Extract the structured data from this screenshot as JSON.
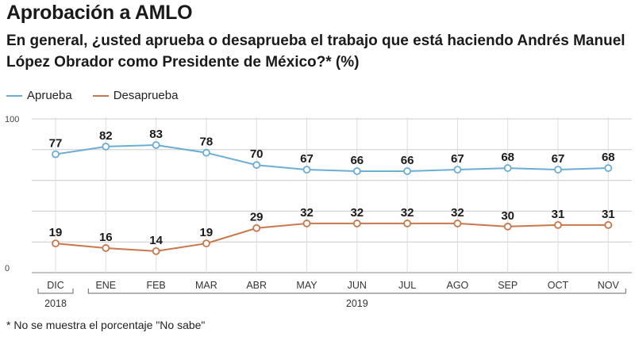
{
  "title": "Aprobación a AMLO",
  "subtitle": "En general, ¿usted aprueba o desaprueba el trabajo que está haciendo Andrés Manuel López Obrador como Presidente de México?*  (%)",
  "footnote": "* No se muestra el porcentaje \"No sabe\"",
  "colors": {
    "aprueba": "#6aaed6",
    "desaprueba": "#c8784a",
    "grid": "#cccccc",
    "axis": "#888888"
  },
  "chart_data": {
    "type": "line",
    "title": "Aprobación a AMLO",
    "xlabel": "",
    "ylabel": "%",
    "ylim": [
      0,
      100
    ],
    "y_tick_labels": [
      "100",
      "0"
    ],
    "categories": [
      "DIC",
      "ENE",
      "FEB",
      "MAR",
      "ABR",
      "MAY",
      "JUN",
      "JUL",
      "AGO",
      "SEP",
      "OCT",
      "NOV"
    ],
    "year_groups": [
      {
        "label": "2018",
        "start": 0,
        "end": 0
      },
      {
        "label": "2019",
        "start": 1,
        "end": 11
      }
    ],
    "series": [
      {
        "name": "Aprueba",
        "values": [
          77,
          82,
          83,
          78,
          70,
          67,
          66,
          66,
          67,
          68,
          67,
          68
        ]
      },
      {
        "name": "Desaprueba",
        "values": [
          19,
          16,
          14,
          19,
          29,
          32,
          32,
          32,
          32,
          30,
          31,
          31
        ]
      }
    ],
    "legend": "top-left",
    "grid": true
  }
}
